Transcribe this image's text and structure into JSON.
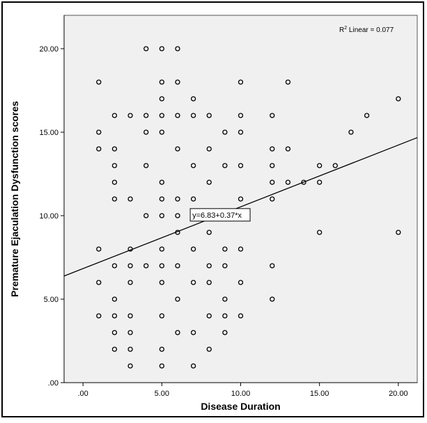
{
  "chart_data": {
    "type": "scatter",
    "title": "",
    "xlabel": "Disease Duration",
    "ylabel": "Premature Ejaculation Dysfunction  scores",
    "xlim": [
      -1.2,
      21.2
    ],
    "ylim": [
      0,
      22
    ],
    "x_ticks": [
      ".00",
      "5.00",
      "10.00",
      "15.00",
      "20.00"
    ],
    "y_ticks": [
      ".00",
      "5.00",
      "10.00",
      "15.00",
      "20.00"
    ],
    "grid": false,
    "background": "#f0f0f0",
    "marker_color": "#000000",
    "fit_line": {
      "intercept": 6.83,
      "slope": 0.37,
      "equation_label": "y=6.83+0.37*x",
      "label_at_x": 8.7
    },
    "r2_label": {
      "prefix": "R",
      "sup": "2",
      "text": " Linear = 0.077"
    },
    "points": [
      [
        1,
        18
      ],
      [
        1,
        15
      ],
      [
        1,
        14
      ],
      [
        1,
        8
      ],
      [
        1,
        6
      ],
      [
        1,
        4
      ],
      [
        2,
        16
      ],
      [
        2,
        14
      ],
      [
        2,
        13
      ],
      [
        2,
        12
      ],
      [
        2,
        11
      ],
      [
        2,
        7
      ],
      [
        2,
        5
      ],
      [
        2,
        4
      ],
      [
        2,
        3
      ],
      [
        2,
        2
      ],
      [
        3,
        16
      ],
      [
        3,
        11
      ],
      [
        3,
        8
      ],
      [
        3,
        7
      ],
      [
        3,
        6
      ],
      [
        3,
        4
      ],
      [
        3,
        3
      ],
      [
        3,
        2
      ],
      [
        3,
        1
      ],
      [
        4,
        20
      ],
      [
        4,
        16
      ],
      [
        4,
        15
      ],
      [
        4,
        13
      ],
      [
        4,
        10
      ],
      [
        4,
        7
      ],
      [
        5,
        20
      ],
      [
        5,
        18
      ],
      [
        5,
        17
      ],
      [
        5,
        16
      ],
      [
        5,
        15
      ],
      [
        5,
        12
      ],
      [
        5,
        11
      ],
      [
        5,
        10
      ],
      [
        5,
        8
      ],
      [
        5,
        7
      ],
      [
        5,
        6
      ],
      [
        5,
        4
      ],
      [
        5,
        2
      ],
      [
        5,
        1
      ],
      [
        6,
        20
      ],
      [
        6,
        18
      ],
      [
        6,
        16
      ],
      [
        6,
        14
      ],
      [
        6,
        11
      ],
      [
        6,
        10
      ],
      [
        6,
        9
      ],
      [
        6,
        7
      ],
      [
        6,
        5
      ],
      [
        6,
        3
      ],
      [
        7,
        17
      ],
      [
        7,
        16
      ],
      [
        7,
        13
      ],
      [
        7,
        11
      ],
      [
        7,
        8
      ],
      [
        7,
        6
      ],
      [
        7,
        3
      ],
      [
        7,
        1
      ],
      [
        8,
        16
      ],
      [
        8,
        14
      ],
      [
        8,
        12
      ],
      [
        8,
        10
      ],
      [
        8,
        9
      ],
      [
        8,
        7
      ],
      [
        8,
        6
      ],
      [
        8,
        4
      ],
      [
        8,
        2
      ],
      [
        9,
        15
      ],
      [
        9,
        13
      ],
      [
        9,
        8
      ],
      [
        9,
        7
      ],
      [
        9,
        5
      ],
      [
        9,
        4
      ],
      [
        9,
        3
      ],
      [
        10,
        18
      ],
      [
        10,
        16
      ],
      [
        10,
        15
      ],
      [
        10,
        13
      ],
      [
        10,
        11
      ],
      [
        10,
        8
      ],
      [
        10,
        6
      ],
      [
        10,
        4
      ],
      [
        12,
        16
      ],
      [
        12,
        14
      ],
      [
        12,
        13
      ],
      [
        12,
        12
      ],
      [
        12,
        11
      ],
      [
        12,
        7
      ],
      [
        12,
        5
      ],
      [
        13,
        18
      ],
      [
        13,
        14
      ],
      [
        13,
        12
      ],
      [
        14,
        12
      ],
      [
        15,
        13
      ],
      [
        15,
        12
      ],
      [
        15,
        9
      ],
      [
        16,
        13
      ],
      [
        17,
        15
      ],
      [
        18,
        16
      ],
      [
        20,
        17
      ],
      [
        20,
        9
      ]
    ]
  }
}
